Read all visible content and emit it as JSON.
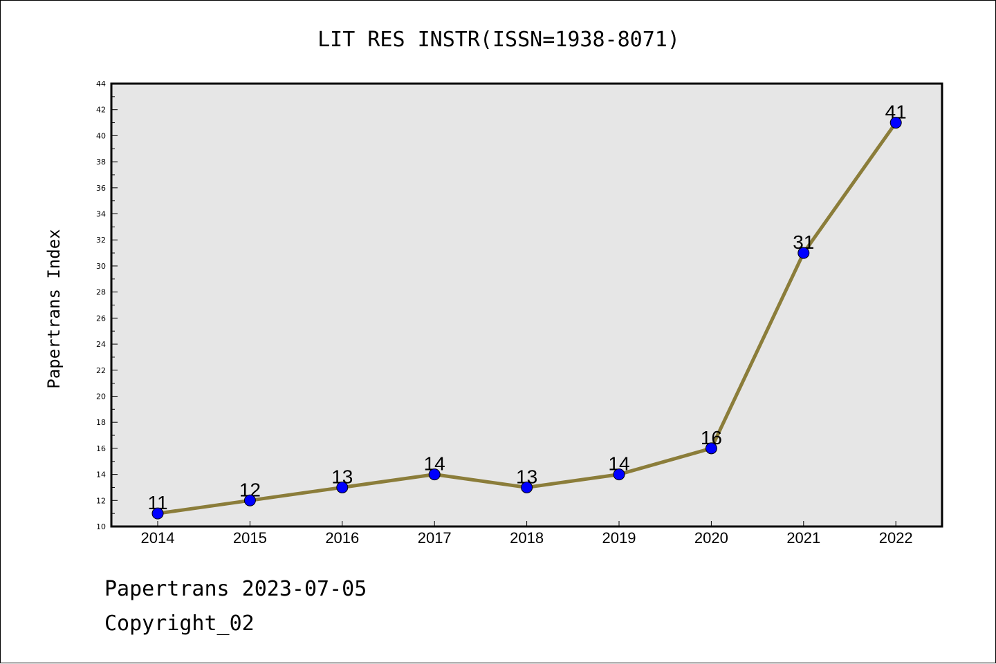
{
  "chart_data": {
    "type": "line",
    "title": "LIT RES INSTR(ISSN=1938-8071)",
    "xlabel": "",
    "ylabel": "Papertrans Index",
    "categories": [
      "2014",
      "2015",
      "2016",
      "2017",
      "2018",
      "2019",
      "2020",
      "2021",
      "2022"
    ],
    "series": [
      {
        "values": [
          11,
          12,
          13,
          14,
          13,
          14,
          16,
          31,
          41
        ]
      }
    ],
    "ylim": [
      10,
      44
    ],
    "yticks": [
      10,
      12,
      14,
      16,
      18,
      20,
      22,
      24,
      26,
      28,
      30,
      32,
      34,
      36,
      38,
      40,
      42,
      44
    ],
    "grid": false,
    "data_labels": true,
    "colors": {
      "line": "#8B7D3A",
      "marker": "#0000FF",
      "marker_edge": "#000000",
      "plot_background": "#E6E6E6"
    }
  },
  "footer": {
    "line1": "Papertrans 2023-07-05",
    "line2": "Copyright_02"
  }
}
